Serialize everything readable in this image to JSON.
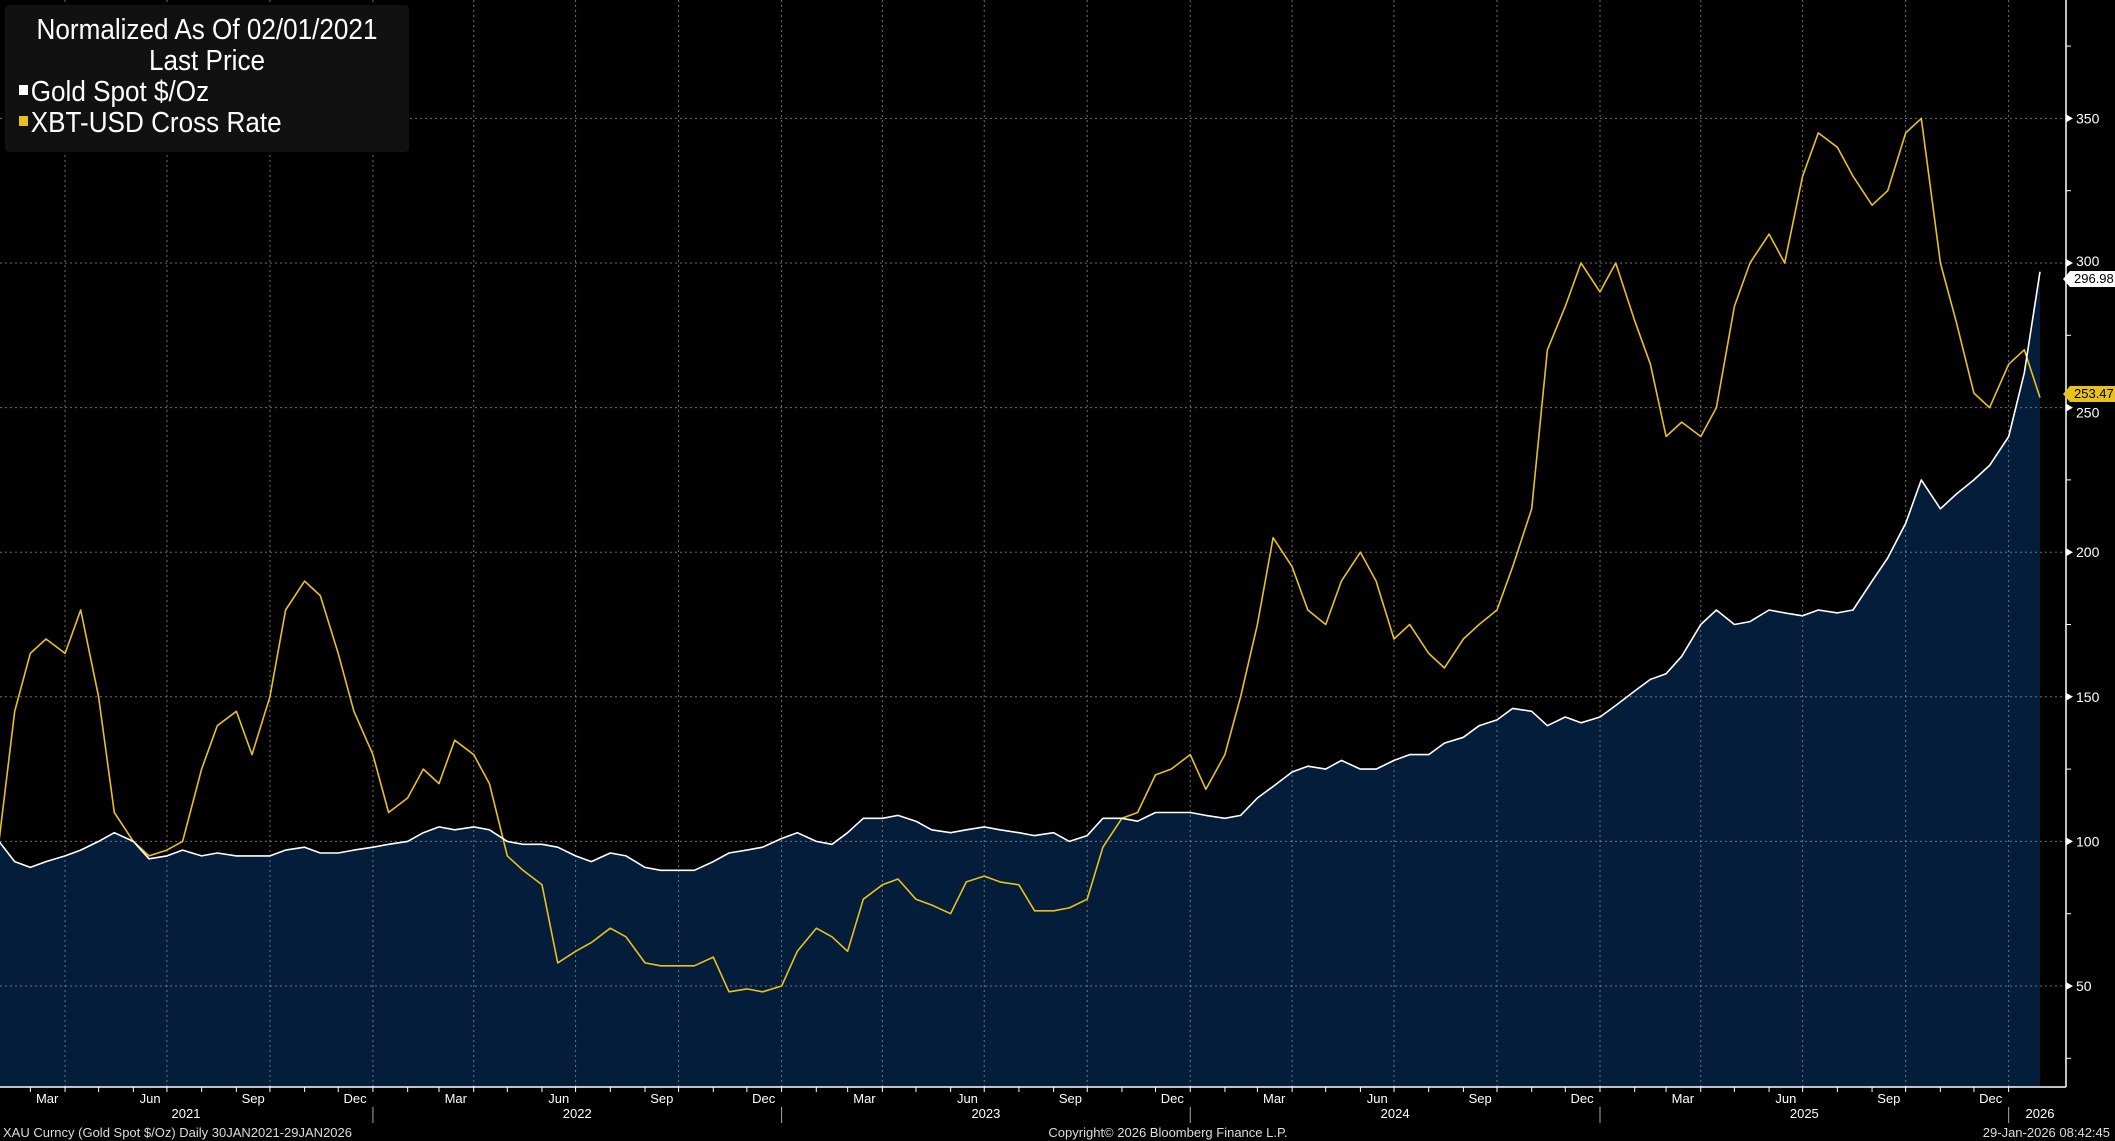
{
  "legend": {
    "title_line1": "Normalized As Of 02/01/2021",
    "title_line2": "Last Price",
    "items": [
      {
        "label": "Gold Spot $/Oz",
        "color": "#ffffff"
      },
      {
        "label": "XBT-USD Cross Rate",
        "color": "#e8c21c"
      }
    ]
  },
  "last_values": {
    "gold": "296.98",
    "btc": "253.47"
  },
  "footer": {
    "left": "XAU Curncy (Gold Spot  $/Oz) Daily 30JAN2021-29JAN2026",
    "center": "Copyright© 2026 Bloomberg Finance L.P.",
    "right": "29-Jan-2026 08:42:45"
  },
  "colors": {
    "background": "#000000",
    "area_fill": "#041d3b",
    "gold_line": "#ffffff",
    "btc_line": "#e8c21c",
    "grid": "#8a8a8a"
  },
  "chart_data": {
    "type": "line",
    "title": "Normalized As Of 02/01/2021 Last Price",
    "xlabel": "",
    "ylabel": "",
    "ylim": [
      14,
      390
    ],
    "xlim": [
      "2021-02-01",
      "2026-01-29"
    ],
    "y_ticks": [
      50,
      100,
      150,
      200,
      250,
      300,
      350
    ],
    "y_tick_labels": [
      "50",
      "100",
      "150",
      "200",
      "250",
      "300",
      "350"
    ],
    "grid": true,
    "legend_position": "top-left",
    "x_month_labels": [
      {
        "label": "Mar",
        "date": "2021-03-16"
      },
      {
        "label": "Jun",
        "date": "2021-06-16"
      },
      {
        "label": "Sep",
        "date": "2021-09-16"
      },
      {
        "label": "Dec",
        "date": "2021-12-16"
      },
      {
        "label": "Mar",
        "date": "2022-03-16"
      },
      {
        "label": "Jun",
        "date": "2022-06-16"
      },
      {
        "label": "Sep",
        "date": "2022-09-16"
      },
      {
        "label": "Dec",
        "date": "2022-12-16"
      },
      {
        "label": "Mar",
        "date": "2023-03-16"
      },
      {
        "label": "Jun",
        "date": "2023-06-16"
      },
      {
        "label": "Sep",
        "date": "2023-09-16"
      },
      {
        "label": "Dec",
        "date": "2023-12-16"
      },
      {
        "label": "Mar",
        "date": "2024-03-16"
      },
      {
        "label": "Jun",
        "date": "2024-06-16"
      },
      {
        "label": "Sep",
        "date": "2024-09-16"
      },
      {
        "label": "Dec",
        "date": "2024-12-16"
      },
      {
        "label": "Mar",
        "date": "2025-03-16"
      },
      {
        "label": "Jun",
        "date": "2025-06-16"
      },
      {
        "label": "Sep",
        "date": "2025-09-16"
      },
      {
        "label": "Dec",
        "date": "2025-12-16"
      }
    ],
    "x_year_labels": [
      {
        "label": "2021",
        "start": "2021-02-01",
        "end": "2022-01-01"
      },
      {
        "label": "2022",
        "start": "2022-01-01",
        "end": "2023-01-01"
      },
      {
        "label": "2023",
        "start": "2023-01-01",
        "end": "2024-01-01"
      },
      {
        "label": "2024",
        "start": "2024-01-01",
        "end": "2025-01-01"
      },
      {
        "label": "2025",
        "start": "2025-01-01",
        "end": "2026-01-01"
      },
      {
        "label": "2026",
        "start": "2026-01-01",
        "end": "2026-02-10"
      }
    ],
    "dates": [
      "2021-02-01",
      "2021-02-15",
      "2021-03-01",
      "2021-03-15",
      "2021-04-01",
      "2021-04-15",
      "2021-05-01",
      "2021-05-15",
      "2021-06-01",
      "2021-06-15",
      "2021-07-01",
      "2021-07-15",
      "2021-08-01",
      "2021-08-15",
      "2021-09-01",
      "2021-09-15",
      "2021-10-01",
      "2021-10-15",
      "2021-11-01",
      "2021-11-15",
      "2021-12-01",
      "2021-12-15",
      "2022-01-01",
      "2022-01-15",
      "2022-02-01",
      "2022-02-15",
      "2022-03-01",
      "2022-03-15",
      "2022-04-01",
      "2022-04-15",
      "2022-05-01",
      "2022-05-15",
      "2022-06-01",
      "2022-06-15",
      "2022-07-01",
      "2022-07-15",
      "2022-08-01",
      "2022-08-15",
      "2022-09-01",
      "2022-09-15",
      "2022-10-01",
      "2022-10-15",
      "2022-11-01",
      "2022-11-15",
      "2022-12-01",
      "2022-12-15",
      "2023-01-01",
      "2023-01-15",
      "2023-02-01",
      "2023-02-15",
      "2023-03-01",
      "2023-03-15",
      "2023-04-01",
      "2023-04-15",
      "2023-05-01",
      "2023-05-15",
      "2023-06-01",
      "2023-06-15",
      "2023-07-01",
      "2023-07-15",
      "2023-08-01",
      "2023-08-15",
      "2023-09-01",
      "2023-09-15",
      "2023-10-01",
      "2023-10-15",
      "2023-11-01",
      "2023-11-15",
      "2023-12-01",
      "2023-12-15",
      "2024-01-01",
      "2024-01-15",
      "2024-02-01",
      "2024-02-15",
      "2024-03-01",
      "2024-03-15",
      "2024-04-01",
      "2024-04-15",
      "2024-05-01",
      "2024-05-15",
      "2024-06-01",
      "2024-06-15",
      "2024-07-01",
      "2024-07-15",
      "2024-08-01",
      "2024-08-15",
      "2024-09-01",
      "2024-09-15",
      "2024-10-01",
      "2024-10-15",
      "2024-11-01",
      "2024-11-15",
      "2024-12-01",
      "2024-12-15",
      "2025-01-01",
      "2025-01-15",
      "2025-02-01",
      "2025-02-15",
      "2025-03-01",
      "2025-03-15",
      "2025-04-01",
      "2025-04-15",
      "2025-05-01",
      "2025-05-15",
      "2025-06-01",
      "2025-06-15",
      "2025-07-01",
      "2025-07-15",
      "2025-08-01",
      "2025-08-15",
      "2025-09-01",
      "2025-09-15",
      "2025-10-01",
      "2025-10-15",
      "2025-11-01",
      "2025-11-15",
      "2025-12-01",
      "2025-12-15",
      "2026-01-01",
      "2026-01-15",
      "2026-01-29"
    ],
    "series": [
      {
        "name": "Gold Spot $/Oz",
        "key": "gold",
        "values": [
          100,
          93,
          91,
          93,
          95,
          97,
          100,
          103,
          100,
          94,
          95,
          97,
          95,
          96,
          95,
          95,
          95,
          97,
          98,
          96,
          96,
          97,
          98,
          99,
          100,
          103,
          105,
          104,
          105,
          104,
          100,
          99,
          99,
          98,
          95,
          93,
          96,
          95,
          91,
          90,
          90,
          90,
          93,
          96,
          97,
          98,
          101,
          103,
          100,
          99,
          103,
          108,
          108,
          109,
          107,
          104,
          103,
          104,
          105,
          104,
          103,
          102,
          103,
          100,
          102,
          108,
          108,
          107,
          110,
          110,
          110,
          109,
          108,
          109,
          115,
          119,
          124,
          126,
          125,
          128,
          125,
          125,
          128,
          130,
          130,
          134,
          136,
          140,
          142,
          146,
          145,
          140,
          143,
          141,
          143,
          147,
          152,
          156,
          158,
          164,
          175,
          180,
          175,
          176,
          180,
          179,
          178,
          180,
          179,
          180,
          190,
          198,
          210,
          225,
          215,
          220,
          225,
          230,
          240,
          262,
          296.98
        ]
      },
      {
        "name": "XBT-USD Cross Rate",
        "key": "btc",
        "values": [
          100,
          145,
          165,
          170,
          165,
          180,
          150,
          110,
          100,
          95,
          97,
          100,
          125,
          140,
          145,
          130,
          150,
          180,
          190,
          185,
          165,
          145,
          130,
          110,
          115,
          125,
          120,
          135,
          130,
          120,
          95,
          90,
          85,
          58,
          62,
          65,
          70,
          67,
          58,
          57,
          57,
          57,
          60,
          48,
          49,
          48,
          50,
          62,
          70,
          67,
          62,
          80,
          85,
          87,
          80,
          78,
          75,
          86,
          88,
          86,
          85,
          76,
          76,
          77,
          80,
          98,
          108,
          110,
          123,
          125,
          130,
          118,
          130,
          150,
          175,
          205,
          195,
          180,
          175,
          190,
          200,
          190,
          170,
          175,
          165,
          160,
          170,
          175,
          180,
          195,
          215,
          270,
          285,
          300,
          290,
          300,
          280,
          265,
          240,
          245,
          240,
          250,
          285,
          300,
          310,
          300,
          330,
          345,
          340,
          330,
          320,
          325,
          345,
          350,
          300,
          280,
          255,
          250,
          265,
          270,
          253.47
        ]
      }
    ]
  }
}
